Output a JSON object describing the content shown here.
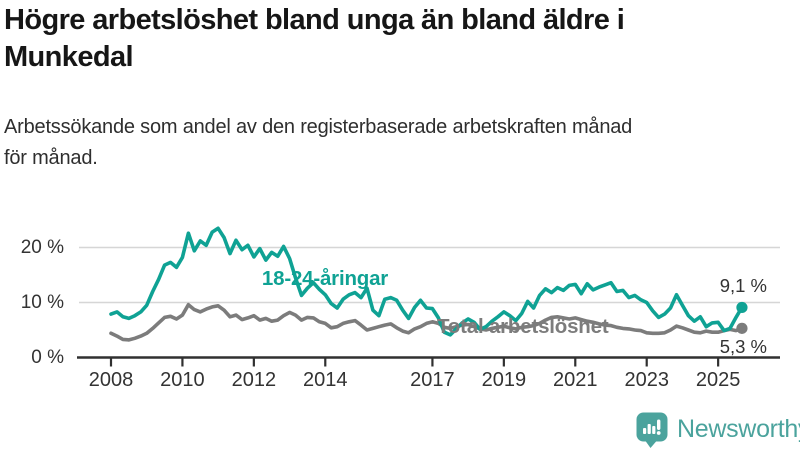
{
  "header": {
    "title_lines": [
      "Högre arbetslöshet bland unga än bland äldre i",
      "Munkedal"
    ],
    "subtitle_lines": [
      "Arbetssökande som andel av den registerbaserade arbetskraften månad",
      "för månad."
    ]
  },
  "chart_data": {
    "type": "line",
    "x_unit": "decimal_year_monthly",
    "x_start_year": 2008,
    "x_step_years": 0.166667,
    "x_end_label": "2025-08",
    "value_unit": "%",
    "xticks": [
      2008,
      2010,
      2012,
      2014,
      2017,
      2019,
      2021,
      2023,
      2025
    ],
    "xtick_labels": [
      "2008",
      "2010",
      "2012",
      "2014",
      "2017",
      "2019",
      "2021",
      "2023",
      "2025"
    ],
    "yticks": [
      0,
      10,
      20
    ],
    "ytick_labels": [
      "0 %",
      "10 %",
      "20 %"
    ],
    "ylim": [
      0,
      26
    ],
    "grid": "horizontal-light",
    "legend_position": "inline-labels",
    "series": [
      {
        "name": "18-24-åringar",
        "color": "#0FA294",
        "end_label": "9,1 %",
        "end_value": 9.1,
        "values": [
          7.9,
          8.3,
          7.4,
          7.1,
          7.6,
          8.3,
          9.5,
          12.0,
          14.2,
          16.8,
          17.3,
          16.4,
          18.2,
          22.6,
          19.4,
          21.2,
          20.4,
          22.8,
          23.5,
          21.8,
          18.9,
          21.3,
          19.6,
          20.4,
          18.3,
          19.8,
          17.7,
          19.1,
          18.4,
          20.2,
          18.0,
          14.5,
          11.3,
          12.6,
          13.6,
          12.4,
          11.4,
          9.8,
          9.0,
          10.6,
          11.4,
          11.8,
          10.9,
          12.6,
          8.6,
          7.6,
          10.6,
          10.9,
          10.4,
          8.6,
          7.1,
          9.1,
          10.4,
          9.0,
          8.9,
          7.2,
          4.6,
          4.1,
          5.2,
          6.3,
          7.0,
          6.4,
          5.1,
          5.6,
          6.6,
          7.4,
          8.3,
          7.6,
          6.7,
          8.0,
          10.2,
          9.0,
          11.3,
          12.5,
          11.8,
          12.7,
          12.2,
          13.1,
          13.3,
          11.6,
          13.4,
          12.3,
          12.8,
          13.2,
          13.6,
          12.0,
          12.2,
          10.9,
          11.3,
          10.5,
          10.0,
          8.5,
          7.3,
          7.9,
          9.0,
          11.4,
          9.5,
          7.6,
          6.6,
          7.4,
          5.6,
          6.3,
          6.4,
          4.9,
          5.3,
          7.3,
          9.1
        ]
      },
      {
        "name": "Total arbetslöshet",
        "color": "#7C7C7C",
        "end_label": "5,3 %",
        "end_value": 5.3,
        "values": [
          4.4,
          3.9,
          3.3,
          3.2,
          3.5,
          3.9,
          4.4,
          5.3,
          6.3,
          7.3,
          7.5,
          7.0,
          7.7,
          9.6,
          8.7,
          8.3,
          8.8,
          9.2,
          9.4,
          8.6,
          7.4,
          7.7,
          6.9,
          7.2,
          7.6,
          6.8,
          7.1,
          6.6,
          6.8,
          7.6,
          8.2,
          7.7,
          6.8,
          7.3,
          7.2,
          6.5,
          6.2,
          5.4,
          5.6,
          6.2,
          6.5,
          6.7,
          5.9,
          5.0,
          5.3,
          5.6,
          5.9,
          6.1,
          5.4,
          4.8,
          4.5,
          5.2,
          5.6,
          6.2,
          6.5,
          6.2,
          5.5,
          5.3,
          5.6,
          5.9,
          6.0,
          5.6,
          5.2,
          5.0,
          5.3,
          5.5,
          5.7,
          5.4,
          5.2,
          5.5,
          5.6,
          5.8,
          6.2,
          6.8,
          7.3,
          7.4,
          7.2,
          7.0,
          7.2,
          6.9,
          6.6,
          6.4,
          6.1,
          5.9,
          5.8,
          5.5,
          5.3,
          5.2,
          5.0,
          4.9,
          4.5,
          4.4,
          4.4,
          4.5,
          5.0,
          5.7,
          5.4,
          5.0,
          4.6,
          4.5,
          4.8,
          4.6,
          4.6,
          4.9,
          5.1,
          4.9,
          5.3
        ]
      }
    ],
    "colors": {
      "grid": "#D6D6D6",
      "axis": "#303030",
      "tick_text": "#333333",
      "end_label_text": "#333333"
    }
  },
  "footer": {
    "brand": "Newsworthy",
    "brand_color": "#4BA39D",
    "logo_icon": "bar-chart-speech-bubble-icon"
  }
}
